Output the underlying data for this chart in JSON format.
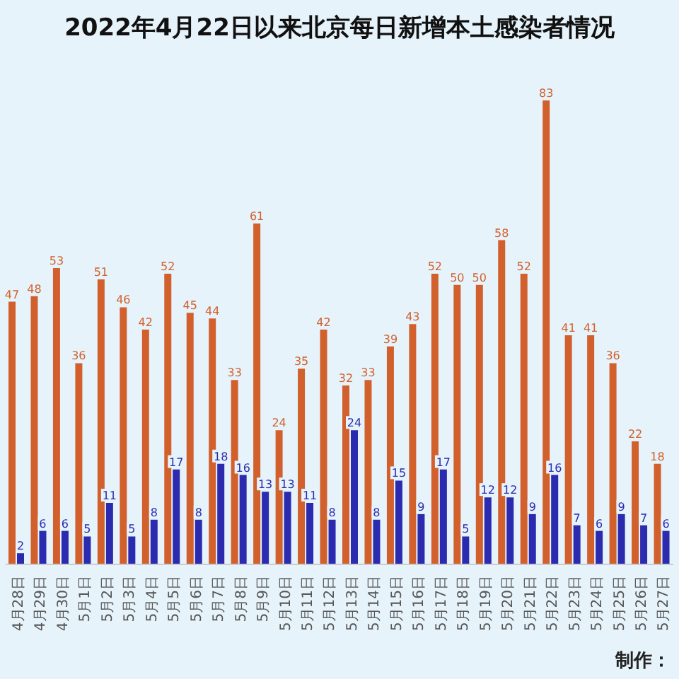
{
  "chart_data": {
    "type": "bar",
    "title": "2022年4月22日以来北京每日新增本土感染者情况",
    "categories": [
      "4月28日",
      "4月29日",
      "4月30日",
      "5月1日",
      "5月2日",
      "5月3日",
      "5月4日",
      "5月5日",
      "5月6日",
      "5月7日",
      "5月8日",
      "5月9日",
      "5月10日",
      "5月11日",
      "5月12日",
      "5月13日",
      "5月14日",
      "5月15日",
      "5月16日",
      "5月17日",
      "5月18日",
      "5月19日",
      "5月20日",
      "5月21日",
      "5月22日",
      "5月23日",
      "5月24日",
      "5月25日",
      "5月26日",
      "5月27日"
    ],
    "series": [
      {
        "color": "#d2602c",
        "values": [
          47,
          48,
          53,
          36,
          51,
          46,
          42,
          52,
          45,
          44,
          33,
          61,
          24,
          35,
          42,
          32,
          33,
          39,
          43,
          52,
          50,
          50,
          58,
          52,
          83,
          41,
          41,
          36,
          22,
          18
        ]
      },
      {
        "color": "#2b2bb0",
        "values": [
          2,
          6,
          6,
          5,
          11,
          5,
          8,
          17,
          8,
          18,
          16,
          13,
          13,
          11,
          8,
          24,
          8,
          15,
          9,
          17,
          5,
          12,
          12,
          9,
          16,
          7,
          6,
          9,
          7,
          6
        ]
      }
    ],
    "data_labels": true,
    "annotations": [
      "制作："
    ]
  }
}
